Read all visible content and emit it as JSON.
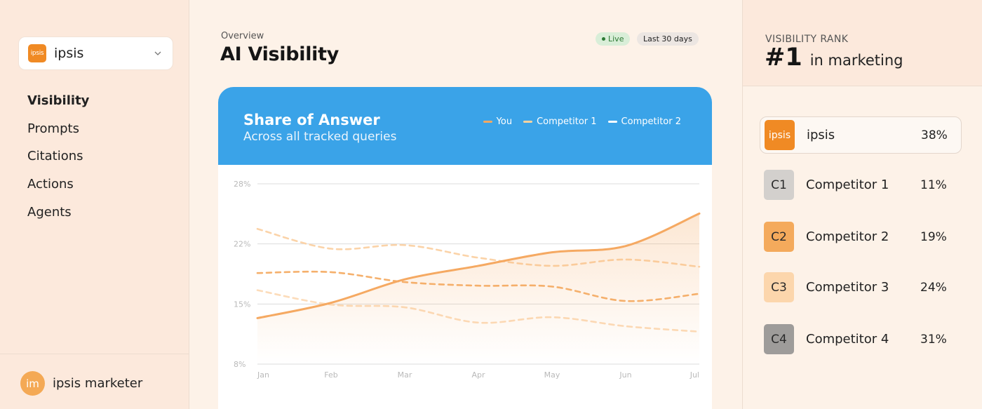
{
  "sidebar": {
    "workspace": {
      "logo_text": "ipsis",
      "name": "ipsis"
    },
    "nav": [
      {
        "label": "Visibility",
        "active": true
      },
      {
        "label": "Prompts",
        "active": false
      },
      {
        "label": "Citations",
        "active": false
      },
      {
        "label": "Actions",
        "active": false
      },
      {
        "label": "Agents",
        "active": false
      }
    ],
    "user": {
      "initials": "im",
      "name": "ipsis marketer"
    }
  },
  "header": {
    "eyebrow": "Overview",
    "title": "AI Visibility",
    "live_label": "Live",
    "range_label": "Last 30 days"
  },
  "card": {
    "title": "Share of Answer",
    "subtitle": "Across all tracked queries",
    "legend": [
      {
        "label": "You",
        "color": "#f5a962"
      },
      {
        "label": "Competitor 1",
        "color": "#fbd3a0"
      },
      {
        "label": "Competitor 2",
        "color": "#ffffff"
      }
    ]
  },
  "chart_data": {
    "type": "line",
    "categories": [
      "Jan",
      "Feb",
      "Mar",
      "Apr",
      "May",
      "Jun",
      "Jul"
    ],
    "y_ticks": [
      "28%",
      "22%",
      "15%",
      "8%"
    ],
    "ylim": [
      8,
      28
    ],
    "grid": true,
    "series": [
      {
        "name": "You",
        "style": "solid",
        "color": "#f5a962",
        "area": true,
        "values": [
          13.1,
          14.8,
          17.4,
          18.9,
          20.4,
          21.1,
          24.7
        ]
      },
      {
        "name": "Competitor 1",
        "style": "dashed",
        "color": "#f5b06c",
        "values": [
          18.1,
          18.2,
          17.1,
          16.7,
          16.6,
          15.0,
          15.8
        ]
      },
      {
        "name": "Competitor 2",
        "style": "dashed",
        "color": "#fbd3a8",
        "values": [
          23.0,
          20.8,
          21.2,
          19.8,
          18.9,
          19.6,
          18.8
        ]
      },
      {
        "name": "",
        "style": "dashed",
        "color": "#fcdcba",
        "values": [
          16.2,
          14.6,
          14.3,
          12.6,
          13.2,
          12.2,
          11.6
        ]
      }
    ]
  },
  "rank": {
    "label": "VISIBILITY RANK",
    "number": "#1",
    "context": "in marketing",
    "rows": [
      {
        "logo": "ipsis",
        "name": "ipsis",
        "pct": "38%",
        "logo_bg": "#f08a24",
        "logo_fg": "#ffffff",
        "selected": true
      },
      {
        "logo": "C1",
        "name": "Competitor 1",
        "pct": "11%",
        "logo_bg": "#d3d0cd",
        "logo_fg": "#2a2a2a",
        "selected": false
      },
      {
        "logo": "C2",
        "name": "Competitor 2",
        "pct": "19%",
        "logo_bg": "#f4aa5c",
        "logo_fg": "#2a2a2a",
        "selected": false
      },
      {
        "logo": "C3",
        "name": "Competitor 3",
        "pct": "24%",
        "logo_bg": "#fcd6ac",
        "logo_fg": "#2a2a2a",
        "selected": false
      },
      {
        "logo": "C4",
        "name": "Competitor 4",
        "pct": "31%",
        "logo_bg": "#9e9c9a",
        "logo_fg": "#2a2a2a",
        "selected": false
      }
    ]
  }
}
